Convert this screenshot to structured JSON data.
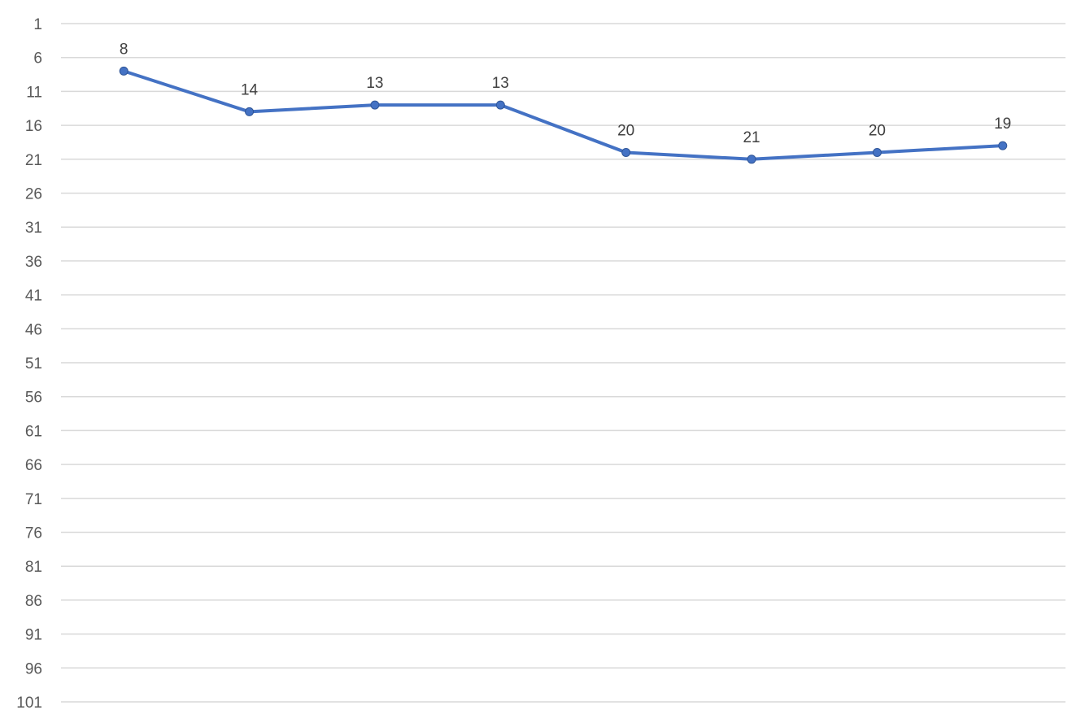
{
  "chart_data": {
    "type": "line",
    "title": "",
    "xlabel": "",
    "ylabel": "",
    "y_reversed": true,
    "ylim": [
      1,
      101
    ],
    "y_ticks": [
      1,
      6,
      11,
      16,
      21,
      26,
      31,
      36,
      41,
      46,
      51,
      56,
      61,
      66,
      71,
      76,
      81,
      86,
      91,
      96,
      101
    ],
    "grid": true,
    "legend": "none",
    "series": [
      {
        "values": [
          8,
          14,
          13,
          13,
          20,
          21,
          20,
          19
        ],
        "color": "#4472C4",
        "data_labels": true
      }
    ]
  }
}
